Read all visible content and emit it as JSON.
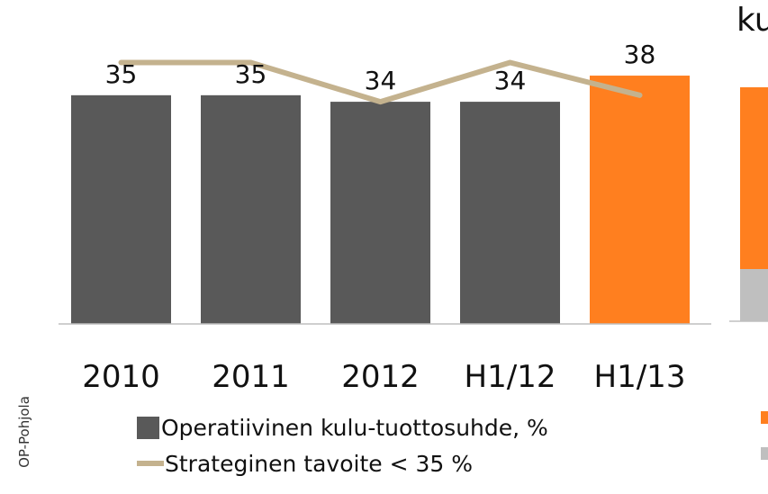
{
  "chart_data": {
    "type": "bar",
    "categories": [
      "2010",
      "2011",
      "2012",
      "H1/12",
      "H1/13"
    ],
    "series": [
      {
        "name": "Operatiivinen kulu-tuottosuhde, %",
        "values": [
          35,
          35,
          34,
          34,
          38
        ],
        "colors": [
          "#595959",
          "#595959",
          "#595959",
          "#595959",
          "#ff7f1f"
        ]
      },
      {
        "name": "Strateginen tavoite < 35 %",
        "type": "line",
        "values": [
          40,
          40,
          34,
          40,
          35
        ],
        "color": "#c4b28e"
      }
    ],
    "data_labels": [
      "35",
      "35",
      "34",
      "34",
      "38"
    ],
    "ylim": [
      0,
      42
    ],
    "grid": false,
    "legend_position": "bottom"
  },
  "side_label": "OP-Pohjola",
  "cutoff_title": "ku"
}
